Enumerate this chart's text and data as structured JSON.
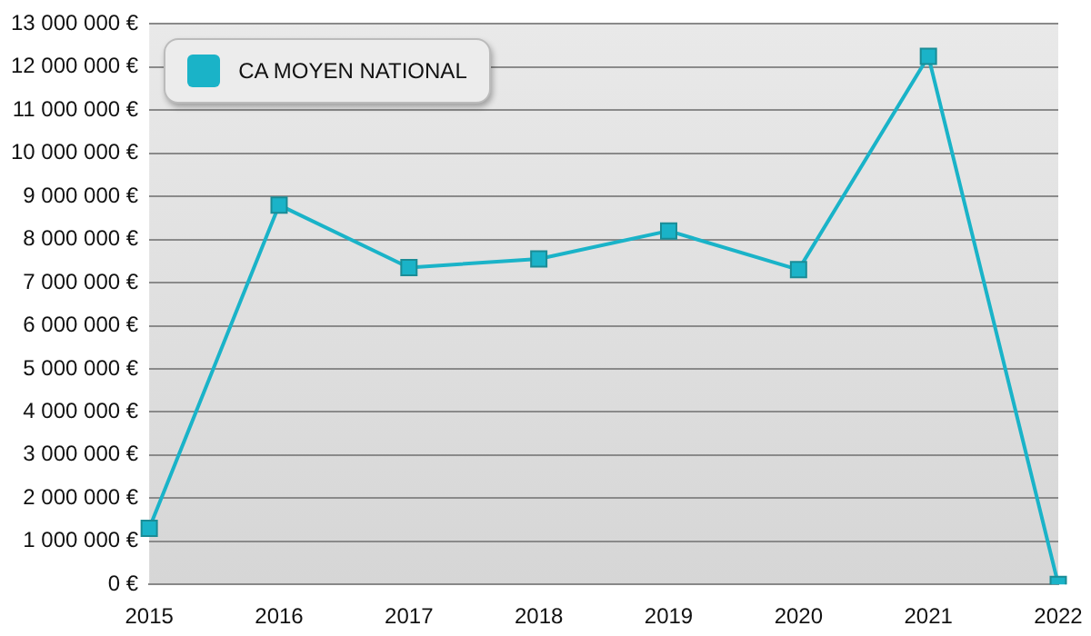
{
  "chart_data": {
    "type": "line",
    "categories": [
      "2015",
      "2016",
      "2017",
      "2018",
      "2019",
      "2020",
      "2021",
      "2022"
    ],
    "series": [
      {
        "name": "CA MOYEN NATIONAL",
        "color": "#1ab3c8",
        "values": [
          1300000,
          8800000,
          7350000,
          7550000,
          8200000,
          7300000,
          12250000,
          0
        ]
      }
    ],
    "ylim": [
      0,
      13000000
    ],
    "yticks": [
      {
        "value": 0,
        "label": "0 €"
      },
      {
        "value": 1000000,
        "label": "1 000 000 €"
      },
      {
        "value": 2000000,
        "label": "2 000 000 €"
      },
      {
        "value": 3000000,
        "label": "3 000 000 €"
      },
      {
        "value": 4000000,
        "label": "4 000 000 €"
      },
      {
        "value": 5000000,
        "label": "5 000 000 €"
      },
      {
        "value": 6000000,
        "label": "6 000 000 €"
      },
      {
        "value": 7000000,
        "label": "7 000 000 €"
      },
      {
        "value": 8000000,
        "label": "8 000 000 €"
      },
      {
        "value": 9000000,
        "label": "9 000 000 €"
      },
      {
        "value": 10000000,
        "label": "10 000 000 €"
      },
      {
        "value": 11000000,
        "label": "11 000 000 €"
      },
      {
        "value": 12000000,
        "label": "12 000 000 €"
      },
      {
        "value": 13000000,
        "label": "13 000 000 €"
      }
    ],
    "grid": "y",
    "legend": "top left",
    "marker": "square",
    "line_style": "solid"
  }
}
